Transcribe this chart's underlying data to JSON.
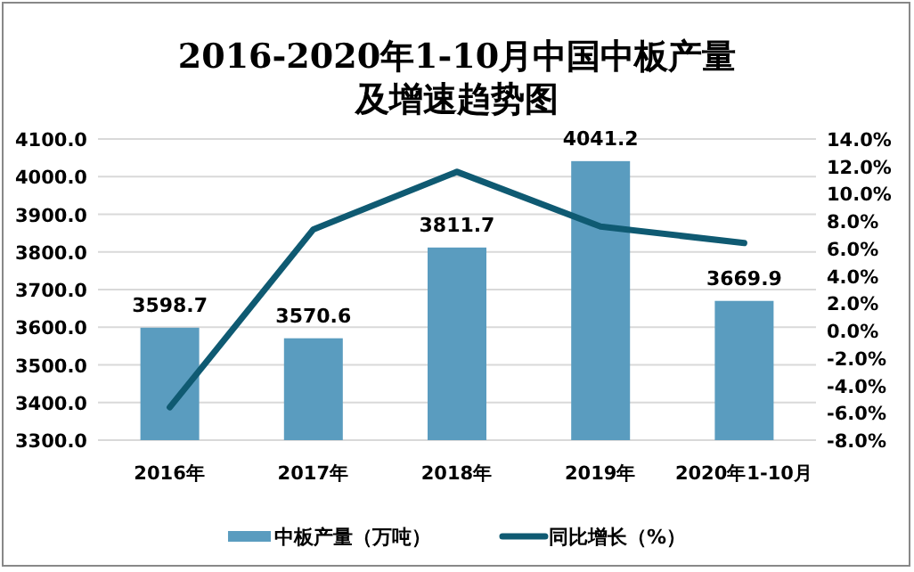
{
  "chart_data": {
    "type": "bar",
    "title": "2016-2020年1-10月中国中板产量及增速趋势图",
    "categories": [
      "2016年",
      "2017年",
      "2018年",
      "2019年",
      "2020年1-10月"
    ],
    "series": [
      {
        "name": "中板产量（万吨）",
        "color": "#5a9cbf",
        "values": [
          3598.7,
          3570.6,
          3811.7,
          4041.2,
          3669.9
        ],
        "value_labels": [
          "3598.7",
          "3570.6",
          "3811.7",
          "4041.2",
          "3669.9"
        ]
      },
      {
        "name": "同比增长（%）",
        "type": "line",
        "axis": "y2",
        "color": "#0f5a72",
        "values": [
          -5.6,
          7.4,
          11.6,
          7.6,
          6.4
        ]
      }
    ],
    "ylim": [
      3300,
      4100
    ],
    "yticks": [
      {
        "value": 3300,
        "label": "3300.0"
      },
      {
        "value": 3400,
        "label": "3400.0"
      },
      {
        "value": 3500,
        "label": "3500.0"
      },
      {
        "value": 3600,
        "label": "3600.0"
      },
      {
        "value": 3700,
        "label": "3700.0"
      },
      {
        "value": 3800,
        "label": "3800.0"
      },
      {
        "value": 3900,
        "label": "3900.0"
      },
      {
        "value": 4000,
        "label": "4000.0"
      },
      {
        "value": 4100,
        "label": "4100.0"
      }
    ],
    "y2lim": [
      -8,
      14
    ],
    "y2ticks": [
      {
        "value": -8,
        "label": "-8.0%"
      },
      {
        "value": -6,
        "label": "-6.0%"
      },
      {
        "value": -4,
        "label": "-4.0%"
      },
      {
        "value": -2,
        "label": "-2.0%"
      },
      {
        "value": 0,
        "label": "0.0%"
      },
      {
        "value": 2,
        "label": "2.0%"
      },
      {
        "value": 4,
        "label": "4.0%"
      },
      {
        "value": 6,
        "label": "6.0%"
      },
      {
        "value": 8,
        "label": "8.0%"
      },
      {
        "value": 10,
        "label": "10.0%"
      },
      {
        "value": 12,
        "label": "12.0%"
      },
      {
        "value": 14,
        "label": "14.0%"
      }
    ],
    "grid": "y",
    "legend": "bottom"
  }
}
